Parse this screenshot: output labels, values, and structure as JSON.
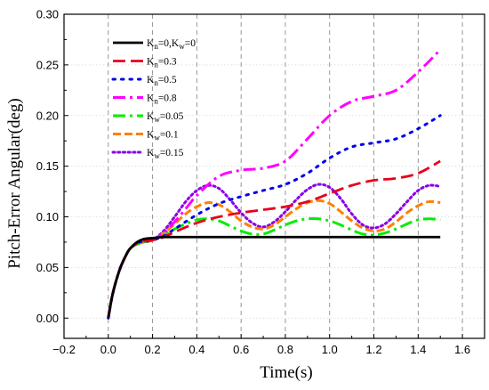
{
  "chart_data": {
    "type": "line",
    "xlabel": "Time(s)",
    "ylabel": "Pitch-Error Angular(deg)",
    "xlim": [
      -0.2,
      1.7
    ],
    "ylim": [
      -0.02,
      0.3
    ],
    "xticks": [
      "−0.2",
      "0.0",
      "0.2",
      "0.4",
      "0.6",
      "0.8",
      "1.0",
      "1.2",
      "1.4",
      "1.6"
    ],
    "xtick_values": [
      -0.2,
      0.0,
      0.2,
      0.4,
      0.6,
      0.8,
      1.0,
      1.2,
      1.4,
      1.6
    ],
    "yticks": [
      "0.00",
      "0.05",
      "0.10",
      "0.15",
      "0.20",
      "0.25",
      "0.30"
    ],
    "ytick_values": [
      0.0,
      0.05,
      0.1,
      0.15,
      0.2,
      0.25,
      0.3
    ],
    "grid": "vertical dashed at x ticks, dotted horizontal",
    "legend_position": "top-left",
    "series": [
      {
        "name": "K",
        "sub": "n",
        "suffix": "=0,K",
        "sub2": "w",
        "suffix2": "=0",
        "color": "#000000",
        "dash": "none",
        "width": 2.8,
        "x": [
          0,
          0.02,
          0.05,
          0.08,
          0.1,
          0.13,
          0.16,
          0.2,
          0.25,
          0.3,
          0.4,
          0.6,
          0.8,
          1.0,
          1.2,
          1.4,
          1.5
        ],
        "y": [
          0.0,
          0.024,
          0.047,
          0.062,
          0.069,
          0.075,
          0.078,
          0.079,
          0.08,
          0.08,
          0.08,
          0.08,
          0.08,
          0.08,
          0.08,
          0.08,
          0.08
        ]
      },
      {
        "name": "K",
        "sub": "n",
        "suffix": "=0.3",
        "color": "#e8001c",
        "dash": "14 6",
        "width": 2.8,
        "x": [
          0,
          0.02,
          0.05,
          0.08,
          0.1,
          0.13,
          0.16,
          0.2,
          0.25,
          0.3,
          0.4,
          0.5,
          0.6,
          0.7,
          0.8,
          0.9,
          1.0,
          1.1,
          1.2,
          1.3,
          1.4,
          1.5
        ],
        "y": [
          0.0,
          0.024,
          0.047,
          0.062,
          0.069,
          0.074,
          0.076,
          0.077,
          0.08,
          0.085,
          0.094,
          0.1,
          0.104,
          0.107,
          0.11,
          0.115,
          0.123,
          0.131,
          0.136,
          0.138,
          0.143,
          0.155
        ]
      },
      {
        "name": "K",
        "sub": "n",
        "suffix": "=0.5",
        "color": "#0000ee",
        "dash": "2.5 7",
        "width": 3,
        "x": [
          0,
          0.02,
          0.05,
          0.08,
          0.1,
          0.13,
          0.16,
          0.2,
          0.25,
          0.3,
          0.4,
          0.5,
          0.6,
          0.7,
          0.8,
          0.9,
          1.0,
          1.1,
          1.2,
          1.3,
          1.4,
          1.5
        ],
        "y": [
          0.0,
          0.024,
          0.047,
          0.062,
          0.069,
          0.074,
          0.076,
          0.077,
          0.081,
          0.088,
          0.102,
          0.113,
          0.12,
          0.126,
          0.132,
          0.143,
          0.158,
          0.169,
          0.173,
          0.177,
          0.187,
          0.2
        ]
      },
      {
        "name": "K",
        "sub": "n",
        "suffix": "=0.8",
        "color": "#ff00ff",
        "dash": "14 5 3 5",
        "width": 3,
        "x": [
          0,
          0.02,
          0.05,
          0.08,
          0.1,
          0.13,
          0.16,
          0.2,
          0.25,
          0.3,
          0.35,
          0.4,
          0.5,
          0.6,
          0.7,
          0.8,
          0.9,
          1.0,
          1.1,
          1.2,
          1.3,
          1.4,
          1.5
        ],
        "y": [
          0.0,
          0.024,
          0.047,
          0.062,
          0.069,
          0.074,
          0.076,
          0.077,
          0.084,
          0.095,
          0.108,
          0.121,
          0.14,
          0.146,
          0.148,
          0.155,
          0.177,
          0.2,
          0.214,
          0.219,
          0.225,
          0.243,
          0.265
        ]
      },
      {
        "name": "K",
        "sub": "w",
        "suffix": "=0.05",
        "color": "#00ee00",
        "dash": "14 5 3 5",
        "width": 3,
        "x": [
          0,
          0.02,
          0.05,
          0.08,
          0.1,
          0.13,
          0.16,
          0.2,
          0.25,
          0.3,
          0.35,
          0.4,
          0.45,
          0.5,
          0.55,
          0.6,
          0.65,
          0.7,
          0.75,
          0.8,
          0.85,
          0.9,
          0.95,
          1.0,
          1.05,
          1.1,
          1.15,
          1.2,
          1.25,
          1.3,
          1.35,
          1.4,
          1.45,
          1.5
        ],
        "y": [
          0.0,
          0.024,
          0.047,
          0.062,
          0.069,
          0.073,
          0.075,
          0.077,
          0.082,
          0.088,
          0.093,
          0.097,
          0.098,
          0.096,
          0.091,
          0.086,
          0.083,
          0.083,
          0.087,
          0.092,
          0.096,
          0.098,
          0.098,
          0.096,
          0.092,
          0.087,
          0.083,
          0.082,
          0.084,
          0.088,
          0.093,
          0.097,
          0.098,
          0.097
        ]
      },
      {
        "name": "K",
        "sub": "w",
        "suffix": "=0.1",
        "color": "#ff7f00",
        "dash": "9 4",
        "width": 3,
        "x": [
          0,
          0.02,
          0.05,
          0.08,
          0.1,
          0.13,
          0.16,
          0.2,
          0.25,
          0.3,
          0.35,
          0.4,
          0.45,
          0.5,
          0.55,
          0.6,
          0.65,
          0.7,
          0.75,
          0.8,
          0.85,
          0.9,
          0.95,
          1.0,
          1.05,
          1.1,
          1.15,
          1.2,
          1.25,
          1.3,
          1.35,
          1.4,
          1.45,
          1.5
        ],
        "y": [
          0.0,
          0.024,
          0.047,
          0.062,
          0.069,
          0.073,
          0.075,
          0.077,
          0.084,
          0.093,
          0.103,
          0.11,
          0.114,
          0.112,
          0.105,
          0.096,
          0.09,
          0.088,
          0.092,
          0.1,
          0.108,
          0.114,
          0.116,
          0.113,
          0.105,
          0.096,
          0.089,
          0.086,
          0.088,
          0.095,
          0.104,
          0.111,
          0.115,
          0.114
        ]
      },
      {
        "name": "K",
        "sub": "w",
        "suffix": "=0.15",
        "color": "#8a00e6",
        "dash": "2.2 3.5",
        "width": 3,
        "x": [
          0,
          0.02,
          0.05,
          0.08,
          0.1,
          0.13,
          0.16,
          0.2,
          0.25,
          0.3,
          0.35,
          0.4,
          0.45,
          0.5,
          0.55,
          0.6,
          0.65,
          0.7,
          0.75,
          0.8,
          0.85,
          0.9,
          0.95,
          1.0,
          1.05,
          1.1,
          1.15,
          1.2,
          1.25,
          1.3,
          1.35,
          1.4,
          1.45,
          1.5
        ],
        "y": [
          0.0,
          0.024,
          0.047,
          0.062,
          0.069,
          0.073,
          0.075,
          0.077,
          0.086,
          0.1,
          0.115,
          0.126,
          0.131,
          0.128,
          0.117,
          0.104,
          0.094,
          0.09,
          0.095,
          0.105,
          0.117,
          0.127,
          0.132,
          0.129,
          0.118,
          0.103,
          0.092,
          0.089,
          0.093,
          0.103,
          0.115,
          0.126,
          0.131,
          0.13
        ]
      }
    ]
  }
}
